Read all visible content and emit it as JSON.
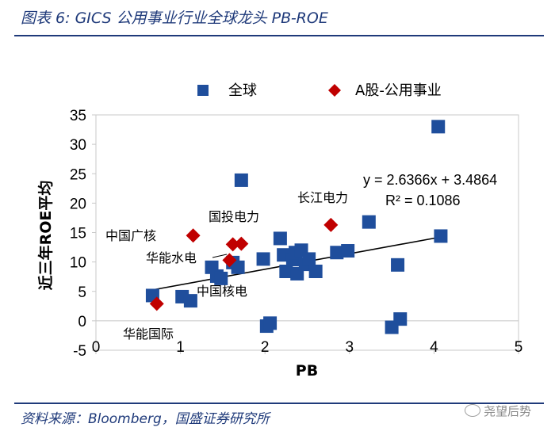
{
  "header": {
    "title": "图表 6:  GICS 公用事业行业全球龙头 PB-ROE"
  },
  "footer": {
    "source": "资料来源：Bloomberg，国盛证券研究所"
  },
  "watermark": {
    "text": "尧望后势"
  },
  "colors": {
    "global": "#1f4e9c",
    "ashare": "#c00000",
    "brand": "#1f3a7a"
  },
  "chart_data": {
    "type": "scatter",
    "title": "GICS 公用事业行业全球龙头 PB-ROE",
    "xlabel": "PB",
    "ylabel": "近三年ROE平均",
    "xlim": [
      0,
      5
    ],
    "ylim": [
      -5,
      35
    ],
    "xticks": [
      0,
      1,
      2,
      3,
      4,
      5
    ],
    "yticks": [
      -5,
      0,
      5,
      10,
      15,
      20,
      25,
      30,
      35
    ],
    "legend": [
      "全球",
      "A股-公用事业"
    ],
    "legend_position": "top",
    "series": [
      {
        "name": "全球",
        "marker": "square",
        "points": [
          [
            0.67,
            4.3
          ],
          [
            1.02,
            4.1
          ],
          [
            1.12,
            3.4
          ],
          [
            1.37,
            9.1
          ],
          [
            1.43,
            7.6
          ],
          [
            1.48,
            7.2
          ],
          [
            1.62,
            9.9
          ],
          [
            1.68,
            9.1
          ],
          [
            1.72,
            23.9
          ],
          [
            1.98,
            10.5
          ],
          [
            2.02,
            -0.9
          ],
          [
            2.06,
            -0.4
          ],
          [
            2.18,
            14.0
          ],
          [
            2.22,
            11.2
          ],
          [
            2.25,
            8.4
          ],
          [
            2.33,
            10.4
          ],
          [
            2.36,
            11.6
          ],
          [
            2.38,
            8.0
          ],
          [
            2.43,
            12.0
          ],
          [
            2.48,
            9.6
          ],
          [
            2.52,
            10.5
          ],
          [
            2.6,
            8.4
          ],
          [
            2.85,
            11.6
          ],
          [
            2.98,
            11.9
          ],
          [
            3.23,
            16.8
          ],
          [
            3.5,
            -1.1
          ],
          [
            3.57,
            9.5
          ],
          [
            3.6,
            0.3
          ],
          [
            4.05,
            33.0
          ],
          [
            4.08,
            14.4
          ]
        ]
      },
      {
        "name": "A股-公用事业",
        "marker": "diamond",
        "points": [
          [
            0.72,
            2.9
          ],
          [
            1.15,
            14.5
          ],
          [
            1.58,
            10.3
          ],
          [
            1.62,
            13.0
          ],
          [
            1.72,
            13.1
          ],
          [
            2.78,
            16.3
          ]
        ]
      }
    ],
    "trendline": {
      "slope": 2.6366,
      "intercept": 3.4864,
      "x_range": [
        0.67,
        4.08
      ]
    },
    "equation": "y = 2.6366x + 3.4864",
    "r_squared": "R² = 0.1086",
    "annotations": [
      "中国广核",
      "国投电力",
      "长江电力",
      "华能水电",
      "中国核电",
      "华能国际"
    ]
  }
}
